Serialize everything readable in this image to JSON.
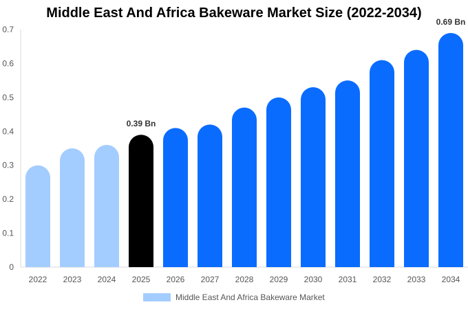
{
  "chart_data": {
    "type": "bar",
    "title": "Middle East And Africa Bakeware Market Size (2022-2034)",
    "categories": [
      "2022",
      "2023",
      "2024",
      "2025",
      "2026",
      "2027",
      "2028",
      "2029",
      "2030",
      "2031",
      "2032",
      "2033",
      "2034"
    ],
    "series": [
      {
        "name": "Middle East And Africa Bakeware Market",
        "values": [
          0.3,
          0.35,
          0.36,
          0.39,
          0.41,
          0.42,
          0.47,
          0.5,
          0.53,
          0.55,
          0.61,
          0.64,
          0.69
        ]
      }
    ],
    "ylim": [
      0,
      0.7
    ],
    "yticks": [
      "0",
      "0.1",
      "0.2",
      "0.3",
      "0.4",
      "0.5",
      "0.6",
      "0.7"
    ],
    "grid": false,
    "legend_position": "bottom",
    "annotations": [
      {
        "category": "2025",
        "text": "0.39 Bn"
      },
      {
        "category": "2034",
        "text": "0.69 Bn"
      }
    ],
    "colors": {
      "historical": "#a4cdff",
      "current": "#000000",
      "forecast": "#0a6cff"
    },
    "color_groups": {
      "historical": [
        "2022",
        "2023",
        "2024"
      ],
      "current": [
        "2025"
      ],
      "forecast": [
        "2026",
        "2027",
        "2028",
        "2029",
        "2030",
        "2031",
        "2032",
        "2033",
        "2034"
      ]
    }
  }
}
